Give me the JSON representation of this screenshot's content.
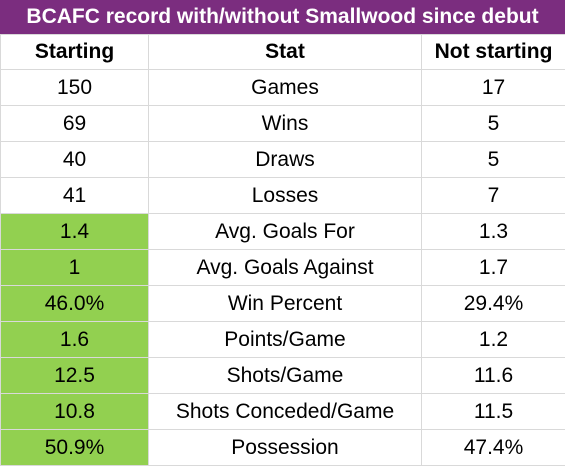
{
  "title": "BCAFC record with/without Smallwood since debut",
  "headers": [
    "Starting",
    "Stat",
    "Not starting"
  ],
  "rows": [
    {
      "starting": "150",
      "stat": "Games",
      "not_starting": "17",
      "highlight": false
    },
    {
      "starting": "69",
      "stat": "Wins",
      "not_starting": "5",
      "highlight": false
    },
    {
      "starting": "40",
      "stat": "Draws",
      "not_starting": "5",
      "highlight": false
    },
    {
      "starting": "41",
      "stat": "Losses",
      "not_starting": "7",
      "highlight": false
    },
    {
      "starting": "1.4",
      "stat": "Avg. Goals For",
      "not_starting": "1.3",
      "highlight": true
    },
    {
      "starting": "1",
      "stat": "Avg. Goals Against",
      "not_starting": "1.7",
      "highlight": true
    },
    {
      "starting": "46.0%",
      "stat": "Win Percent",
      "not_starting": "29.4%",
      "highlight": true
    },
    {
      "starting": "1.6",
      "stat": "Points/Game",
      "not_starting": "1.2",
      "highlight": true
    },
    {
      "starting": "12.5",
      "stat": "Shots/Game",
      "not_starting": "11.6",
      "highlight": true
    },
    {
      "starting": "10.8",
      "stat": "Shots Conceded/Game",
      "not_starting": "11.5",
      "highlight": true
    },
    {
      "starting": "50.9%",
      "stat": "Possession",
      "not_starting": "47.4%",
      "highlight": true
    }
  ],
  "colors": {
    "title_bg": "#7b2d7f",
    "highlight": "#92d050"
  }
}
